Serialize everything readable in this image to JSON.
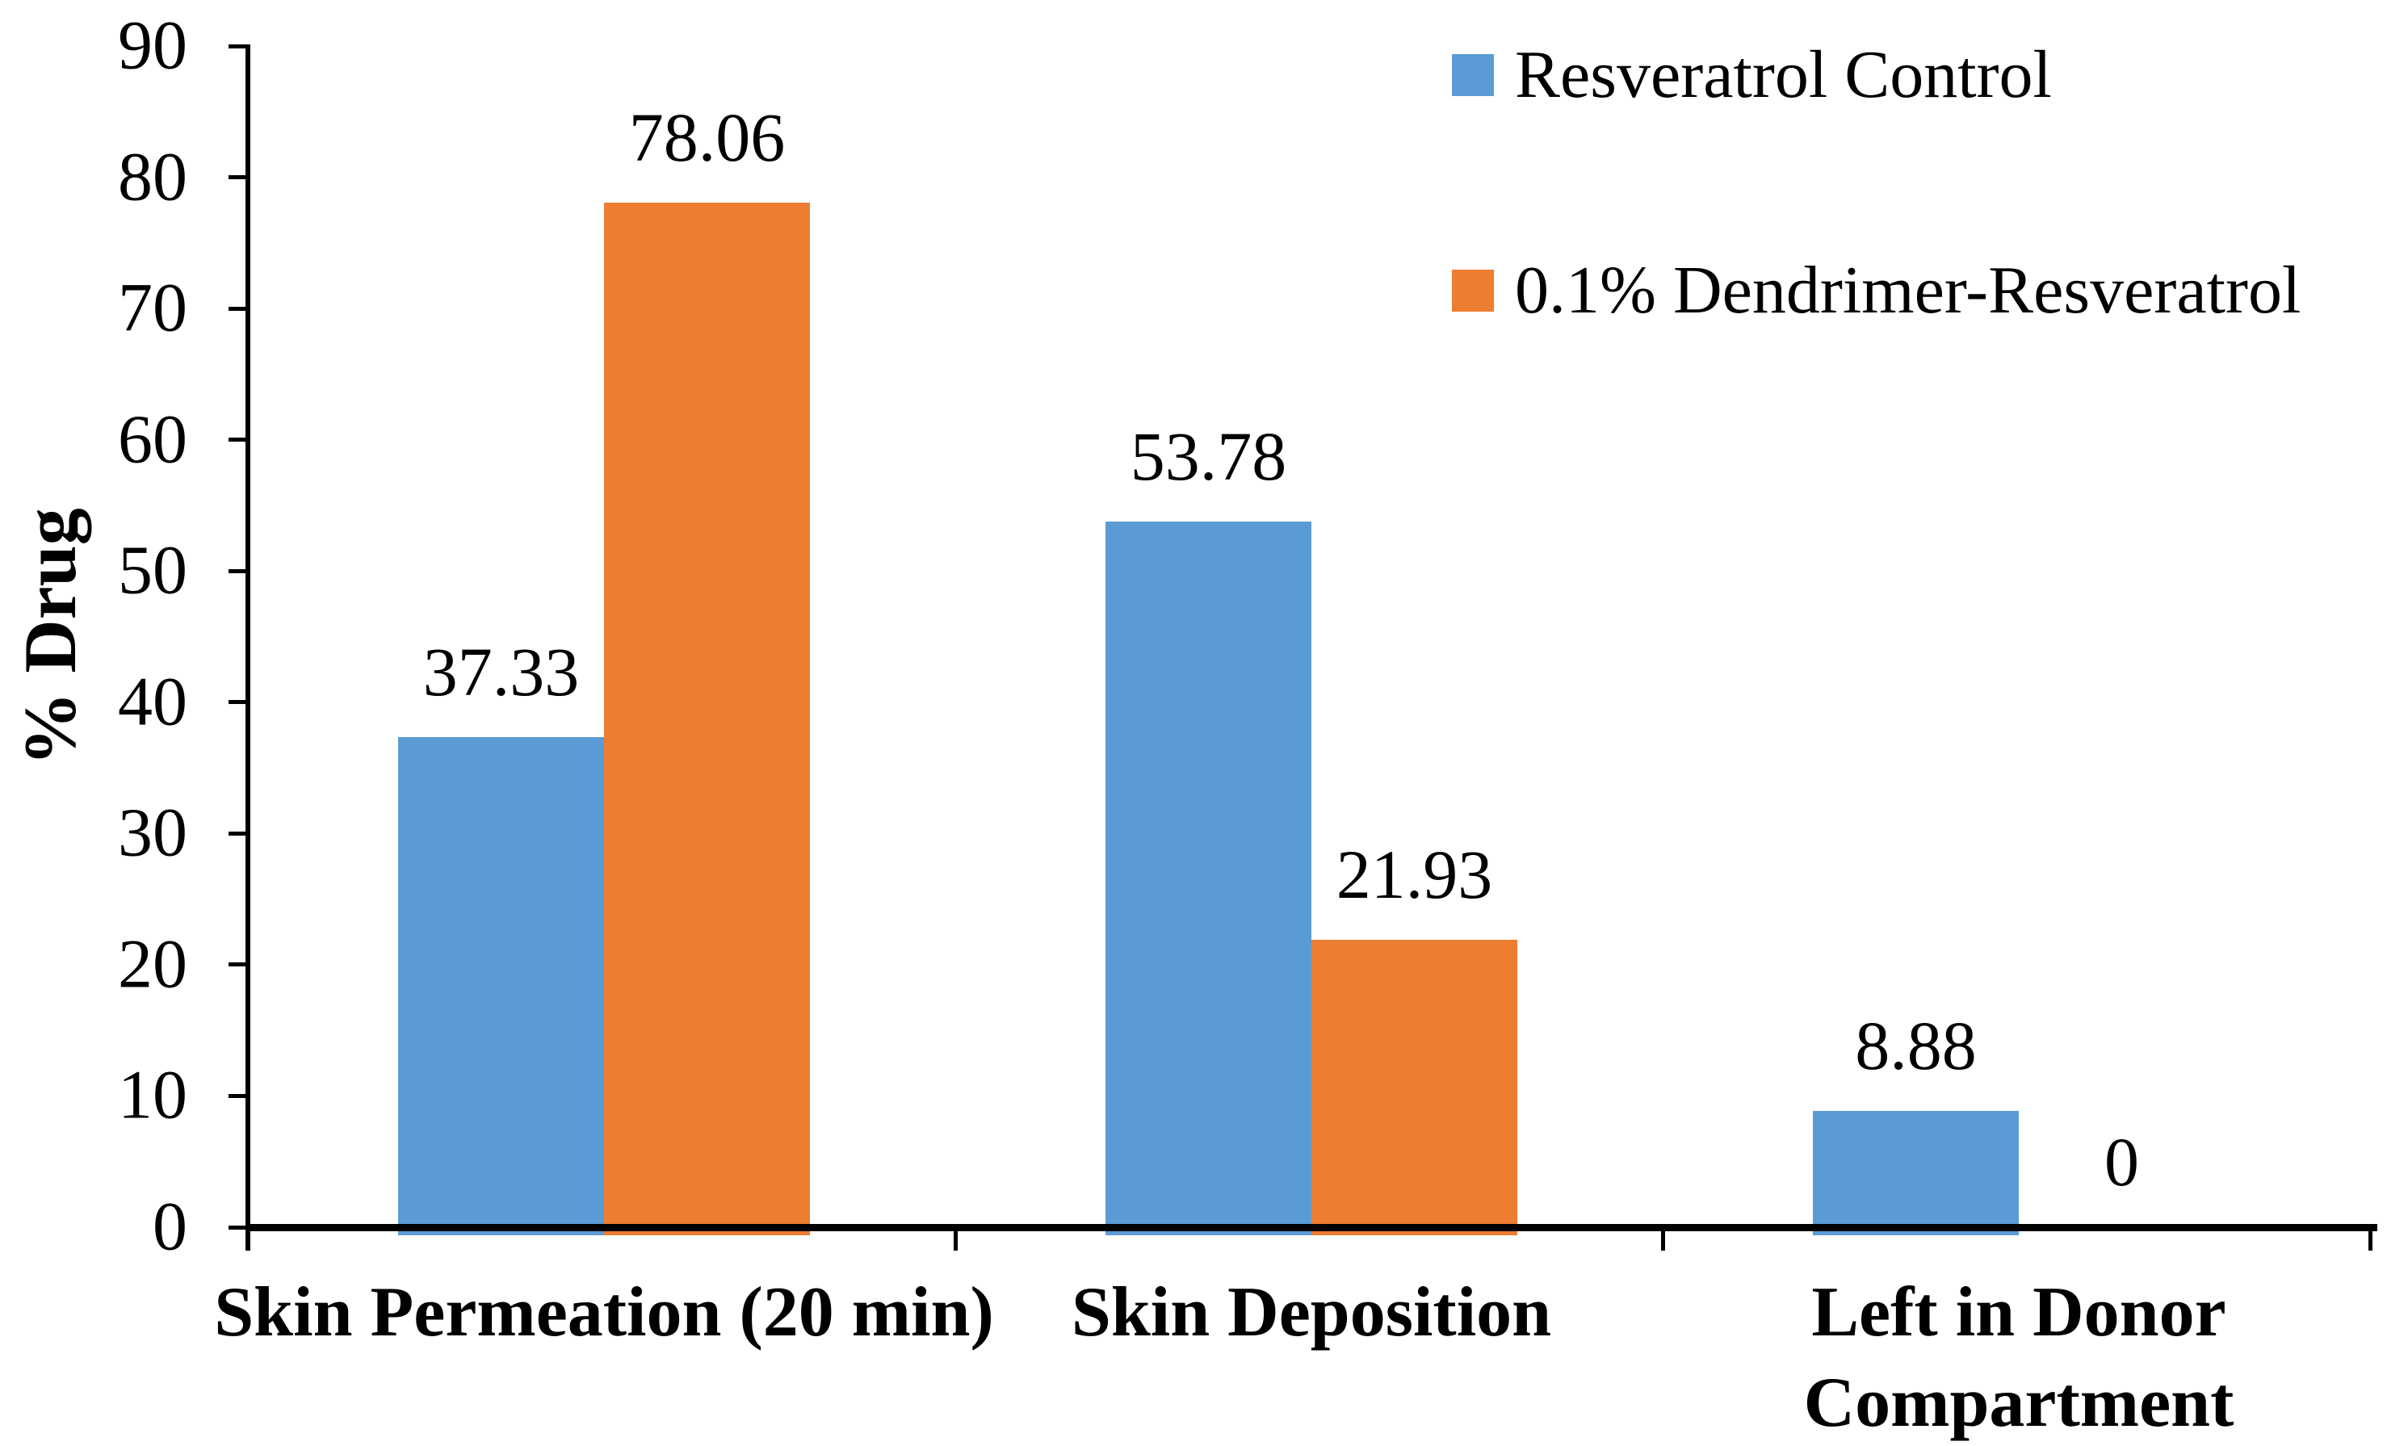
{
  "figure": {
    "background": "#ffffff",
    "axis_color": "#000000",
    "text_color": "#000000"
  },
  "chart_data": {
    "type": "bar",
    "title": "",
    "xlabel": "",
    "ylabel": "% Drug",
    "ylim": [
      0,
      90
    ],
    "yticks": [
      0,
      10,
      20,
      30,
      40,
      50,
      60,
      70,
      80,
      90
    ],
    "grid": false,
    "legend_position": "top-right",
    "categories": [
      "Skin Permeation (20 min)",
      "Skin Deposition",
      "Left in Donor Compartment"
    ],
    "categories_display": [
      [
        "Skin Permeation (20 min)"
      ],
      [
        "Skin Deposition"
      ],
      [
        "Left in Donor",
        "Compartment"
      ]
    ],
    "series": [
      {
        "name": "Resveratrol Control",
        "color": "#5B9BD5",
        "values": [
          37.33,
          53.78,
          8.88
        ],
        "labels": [
          "37.33",
          "53.78",
          "8.88"
        ]
      },
      {
        "name": "0.1% Dendrimer-Resveratrol",
        "color": "#ED7D31",
        "values": [
          78.06,
          21.93,
          0
        ],
        "labels": [
          "78.06",
          "21.93",
          "0"
        ]
      }
    ]
  }
}
